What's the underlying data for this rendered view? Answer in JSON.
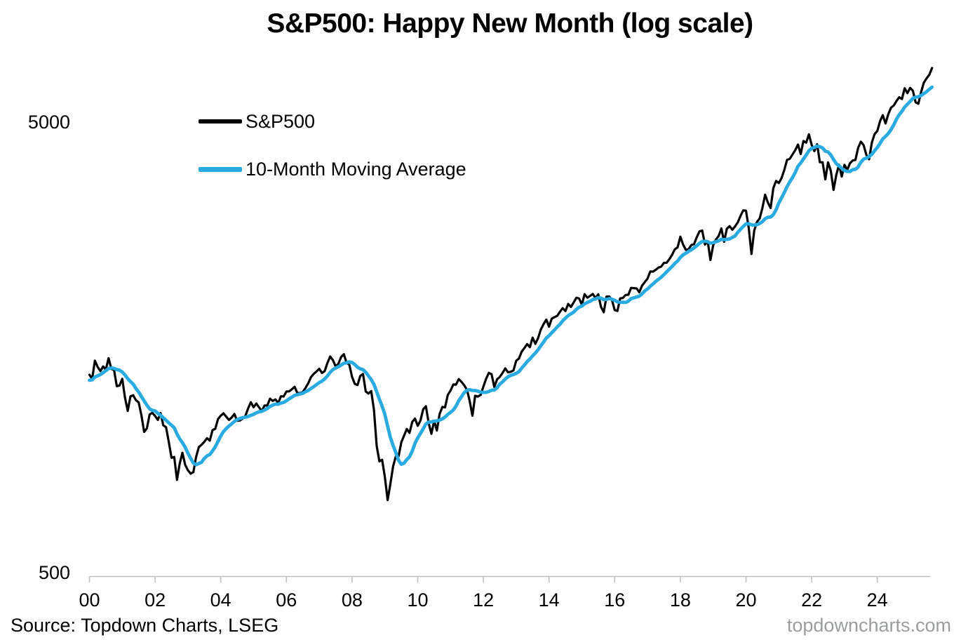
{
  "title": "S&P500: Happy New Month (log scale)",
  "legend": {
    "items": [
      {
        "label": "S&P500",
        "color": "#000000"
      },
      {
        "label": "10-Month Moving Average",
        "color": "#29ABE2"
      }
    ]
  },
  "footer": {
    "source": "Source: Topdown Charts, LSEG",
    "watermark": "topdowncharts.com"
  },
  "chart_data": {
    "type": "line",
    "title": "S&P500: Happy New Month (log scale)",
    "xlabel": "",
    "ylabel": "",
    "y_scale": "log",
    "grid": false,
    "legend_position": "upper-left-inside",
    "axis_color": "#BFBFBF",
    "x_range_years": [
      2000,
      2025.75
    ],
    "y_ticks": [
      {
        "value": 500,
        "label": "500"
      },
      {
        "value": 5000,
        "label": "5000"
      }
    ],
    "x_ticks": [
      {
        "year": 2000,
        "label": "00"
      },
      {
        "year": 2002,
        "label": "02"
      },
      {
        "year": 2004,
        "label": "04"
      },
      {
        "year": 2006,
        "label": "06"
      },
      {
        "year": 2008,
        "label": "08"
      },
      {
        "year": 2010,
        "label": "10"
      },
      {
        "year": 2012,
        "label": "12"
      },
      {
        "year": 2014,
        "label": "14"
      },
      {
        "year": 2016,
        "label": "16"
      },
      {
        "year": 2018,
        "label": "18"
      },
      {
        "year": 2020,
        "label": "20"
      },
      {
        "year": 2022,
        "label": "22"
      },
      {
        "year": 2024,
        "label": "24"
      }
    ],
    "series": [
      {
        "name": "S&P500",
        "color": "#000000",
        "width": 3.2,
        "source": "monthly_close"
      },
      {
        "name": "10-Month Moving Average",
        "color": "#29ABE2",
        "width": 4.8,
        "source": "monthly_close",
        "derived": "10-month trailing mean"
      }
    ],
    "monthly_close": {
      "start": "1999-04",
      "plot_from": "2000-01",
      "note": "Approximate S&P500 month-end closes; values before plot_from are used only to seed the 10-month moving average.",
      "values": [
        1335,
        1302,
        1373,
        1329,
        1320,
        1283,
        1363,
        1389,
        1469,
        1394,
        1366,
        1499,
        1452,
        1421,
        1455,
        1431,
        1518,
        1437,
        1429,
        1315,
        1320,
        1366,
        1240,
        1160,
        1249,
        1256,
        1224,
        1211,
        1134,
        1041,
        1060,
        1139,
        1148,
        1130,
        1107,
        1147,
        1077,
        1067,
        990,
        912,
        916,
        815,
        886,
        936,
        880,
        856,
        841,
        848,
        917,
        964,
        975,
        990,
        1008,
        996,
        1051,
        1058,
        1112,
        1131,
        1145,
        1126,
        1107,
        1121,
        1141,
        1102,
        1104,
        1115,
        1130,
        1174,
        1212,
        1181,
        1204,
        1181,
        1157,
        1192,
        1191,
        1234,
        1220,
        1229,
        1207,
        1249,
        1248,
        1280,
        1281,
        1295,
        1311,
        1270,
        1270,
        1277,
        1304,
        1336,
        1378,
        1401,
        1418,
        1438,
        1407,
        1421,
        1482,
        1531,
        1503,
        1455,
        1474,
        1527,
        1549,
        1481,
        1468,
        1379,
        1331,
        1323,
        1386,
        1400,
        1280,
        1267,
        1283,
        1166,
        969,
        896,
        903,
        826,
        735,
        798,
        873,
        919,
        919,
        987,
        1021,
        1057,
        1036,
        1096,
        1115,
        1074,
        1104,
        1169,
        1187,
        1089,
        1031,
        1102,
        1049,
        1141,
        1183,
        1181,
        1258,
        1286,
        1327,
        1326,
        1364,
        1345,
        1321,
        1292,
        1219,
        1131,
        1253,
        1247,
        1258,
        1312,
        1366,
        1408,
        1398,
        1310,
        1362,
        1379,
        1407,
        1441,
        1412,
        1416,
        1426,
        1498,
        1515,
        1569,
        1598,
        1631,
        1606,
        1686,
        1633,
        1682,
        1757,
        1806,
        1848,
        1783,
        1859,
        1872,
        1884,
        1924,
        1960,
        1931,
        2003,
        1972,
        2018,
        2068,
        2059,
        1995,
        2105,
        2068,
        2086,
        2107,
        2063,
        2104,
        1972,
        1920,
        2079,
        2080,
        2044,
        1940,
        1932,
        2060,
        2065,
        2097,
        2099,
        2174,
        2171,
        2168,
        2126,
        2199,
        2239,
        2279,
        2364,
        2363,
        2384,
        2412,
        2423,
        2470,
        2472,
        2519,
        2575,
        2648,
        2674,
        2824,
        2714,
        2641,
        2648,
        2705,
        2718,
        2816,
        2902,
        2914,
        2712,
        2760,
        2507,
        2704,
        2784,
        2834,
        2946,
        2752,
        2942,
        2980,
        2926,
        2977,
        3038,
        3141,
        3231,
        3226,
        2954,
        2585,
        2912,
        3044,
        3100,
        3271,
        3500,
        3363,
        3270,
        3622,
        3756,
        3714,
        3811,
        3973,
        4181,
        4204,
        4298,
        4395,
        4523,
        4308,
        4605,
        4567,
        4766,
        4516,
        4374,
        4530,
        4132,
        4132,
        3785,
        4130,
        3955,
        3586,
        3872,
        4080,
        3840,
        4077,
        3970,
        4109,
        4169,
        4180,
        4450,
        4589,
        4508,
        4288,
        4194,
        4568,
        4770,
        4846,
        5096,
        5254,
        5036,
        5278,
        5460,
        5522,
        5648,
        5762,
        5705,
        6032,
        5882,
        6041,
        5955,
        5612,
        5569,
        5912,
        6205,
        6340,
        6460,
        6688
      ]
    }
  }
}
